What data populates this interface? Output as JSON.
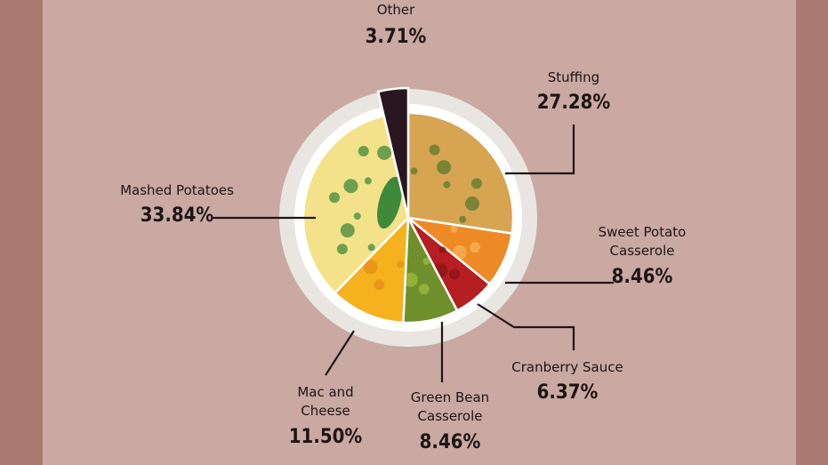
{
  "colors": {
    "background_band": "#a87a72",
    "panel": "#caa9a3",
    "plate_rim": "#e9e6e1",
    "plate_inner": "#ffffff",
    "leader_line": "#1e1414"
  },
  "chart_data": {
    "type": "pie",
    "title": "",
    "start_angle_deg": 0,
    "direction": "clockwise",
    "slices": [
      {
        "name": "Stuffing",
        "value": 27.28,
        "label": "27.28%",
        "color": "#d7a452",
        "accent": "#5a7a2e",
        "icon": "stuffing-food-icon"
      },
      {
        "name": "Sweet Potato Casserole",
        "name_lines": [
          "Sweet Potato",
          "Casserole"
        ],
        "value": 8.46,
        "label": "8.46%",
        "color": "#ee8a25",
        "accent": "#f6b25a",
        "icon": "sweet-potato-food-icon"
      },
      {
        "name": "Cranberry Sauce",
        "value": 6.37,
        "label": "6.37%",
        "color": "#b51e22",
        "accent": "#8a1418",
        "icon": "cranberry-food-icon"
      },
      {
        "name": "Green Bean Casserole",
        "name_lines": [
          "Green Bean",
          "Casserole"
        ],
        "value": 8.46,
        "label": "8.46%",
        "color": "#6f8f2c",
        "accent": "#9cbc3c",
        "icon": "green-bean-food-icon"
      },
      {
        "name": "Mac and Cheese",
        "name_lines": [
          "Mac and",
          "Cheese"
        ],
        "value": 11.5,
        "label": "11.50%",
        "color": "#f5b21e",
        "accent": "#e88c18",
        "icon": "mac-cheese-food-icon"
      },
      {
        "name": "Mashed Potatoes",
        "value": 33.84,
        "label": "33.84%",
        "color": "#f4e28a",
        "accent": "#3f8a3a",
        "icon": "mashed-potato-food-icon"
      },
      {
        "name": "Other",
        "value": 3.71,
        "label": "3.71%",
        "color": "#2a1620",
        "accent": "#f2eee8",
        "icon": "other-slice-icon"
      }
    ]
  }
}
